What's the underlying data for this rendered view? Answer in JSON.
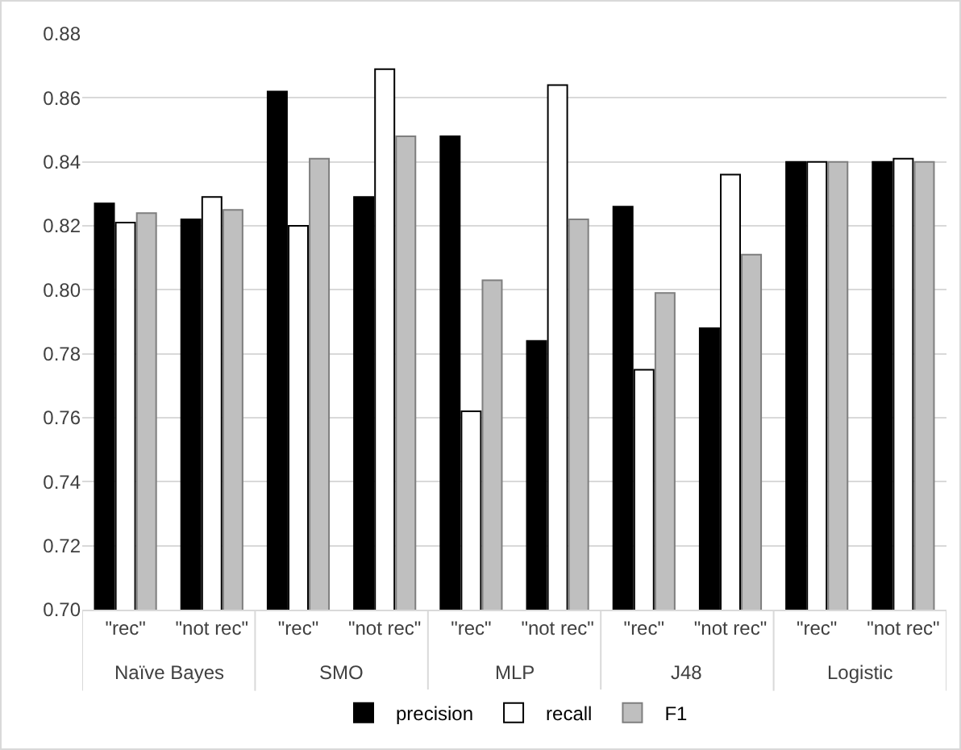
{
  "chart_data": {
    "type": "bar",
    "categories": [
      "\"rec\"",
      "\"not rec\"",
      "\"rec\"",
      "\"not rec\"",
      "\"rec\"",
      "\"not rec\"",
      "\"rec\"",
      "\"not rec\"",
      "\"rec\"",
      "\"not rec\""
    ],
    "annotations": [
      "Naïve Bayes",
      "SMO",
      "MLP",
      "J48",
      "Logistic"
    ],
    "series": [
      {
        "name": "precision",
        "color": "#000000",
        "values": [
          0.827,
          0.822,
          0.862,
          0.829,
          0.848,
          0.784,
          0.826,
          0.788,
          0.84,
          0.84
        ]
      },
      {
        "name": "recall",
        "color": "#ffffff",
        "values": [
          0.821,
          0.829,
          0.82,
          0.869,
          0.762,
          0.864,
          0.775,
          0.836,
          0.84,
          0.841
        ]
      },
      {
        "name": "F1",
        "color": "#bfbfbf",
        "values": [
          0.824,
          0.825,
          0.841,
          0.848,
          0.803,
          0.822,
          0.799,
          0.811,
          0.84,
          0.84
        ]
      }
    ],
    "ylim": [
      0.7,
      0.88
    ],
    "yticks": [
      {
        "value": 0.7,
        "label": "0.70"
      },
      {
        "value": 0.72,
        "label": "0.72"
      },
      {
        "value": 0.74,
        "label": "0.74"
      },
      {
        "value": 0.76,
        "label": "0.76"
      },
      {
        "value": 0.78,
        "label": "0.78"
      },
      {
        "value": 0.8,
        "label": "0.80"
      },
      {
        "value": 0.82,
        "label": "0.82"
      },
      {
        "value": 0.84,
        "label": "0.84"
      },
      {
        "value": 0.86,
        "label": "0.86"
      },
      {
        "value": 0.88,
        "label": "0.88"
      }
    ],
    "grid": "y",
    "legend": "bottom"
  }
}
